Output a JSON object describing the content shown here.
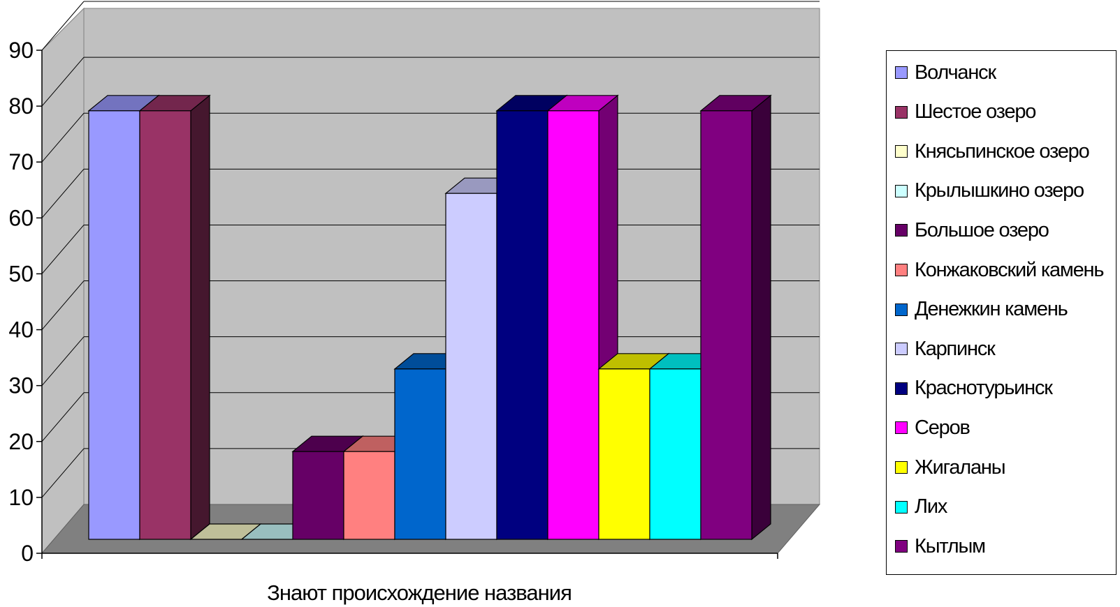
{
  "chart_data": {
    "type": "bar",
    "categories": [
      "Знают происхождение названия"
    ],
    "xlabel": "Знают происхождение названия",
    "ylabel": "",
    "ylim": [
      0,
      90
    ],
    "yticks": [
      0,
      10,
      20,
      30,
      40,
      50,
      60,
      70,
      80,
      90
    ],
    "grid": true,
    "legend_position": "right",
    "series": [
      {
        "name": "Волчанск",
        "values": [
          83
        ],
        "color": "#9999FF"
      },
      {
        "name": "Шестое озеро",
        "values": [
          83
        ],
        "color": "#993366"
      },
      {
        "name": "Княсьпинское озеро",
        "values": [
          0
        ],
        "color": "#FFFFCC"
      },
      {
        "name": "Крылышкино озеро",
        "values": [
          0
        ],
        "color": "#CCFFFF"
      },
      {
        "name": "Большое озеро",
        "values": [
          17
        ],
        "color": "#660066"
      },
      {
        "name": "Конжаковский камень",
        "values": [
          17
        ],
        "color": "#FF8080"
      },
      {
        "name": "Денежкин камень",
        "values": [
          33
        ],
        "color": "#0066CC"
      },
      {
        "name": "Карпинск",
        "values": [
          67
        ],
        "color": "#CCCCFF"
      },
      {
        "name": "Краснотурьинск",
        "values": [
          83
        ],
        "color": "#000080"
      },
      {
        "name": "Серов",
        "values": [
          83
        ],
        "color": "#FF00FF"
      },
      {
        "name": "Жигаланы",
        "values": [
          33
        ],
        "color": "#FFFF00"
      },
      {
        "name": "Лих",
        "values": [
          33
        ],
        "color": "#00FFFF"
      },
      {
        "name": "Кытлым",
        "values": [
          83
        ],
        "color": "#800080"
      }
    ]
  }
}
